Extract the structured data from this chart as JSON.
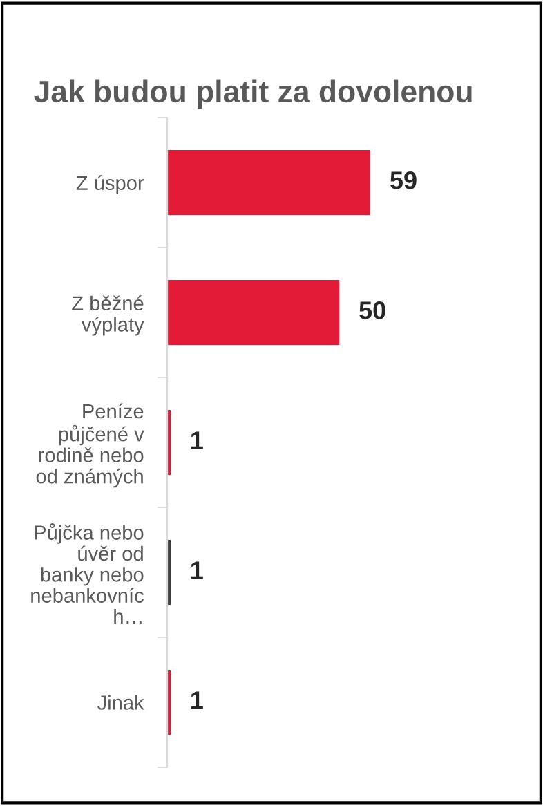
{
  "chart_data": {
    "type": "bar",
    "orientation": "horizontal",
    "title": "Jak budou platit za dovolenou",
    "categories": [
      "Z úspor",
      "Z běžné\nvýplaty",
      "Peníze\npůjčené v\nrodině nebo\nod známých",
      "Půjčka nebo\núvěr od\nbanky nebo\nnebankovníc\nh…",
      "Jinak"
    ],
    "values": [
      59,
      50,
      1,
      1,
      1
    ],
    "colors": [
      "#e31b36",
      "#e31b36",
      "#e31b36",
      "#404040",
      "#e31b36"
    ],
    "data_labels": true,
    "grid": false,
    "legend": false
  }
}
